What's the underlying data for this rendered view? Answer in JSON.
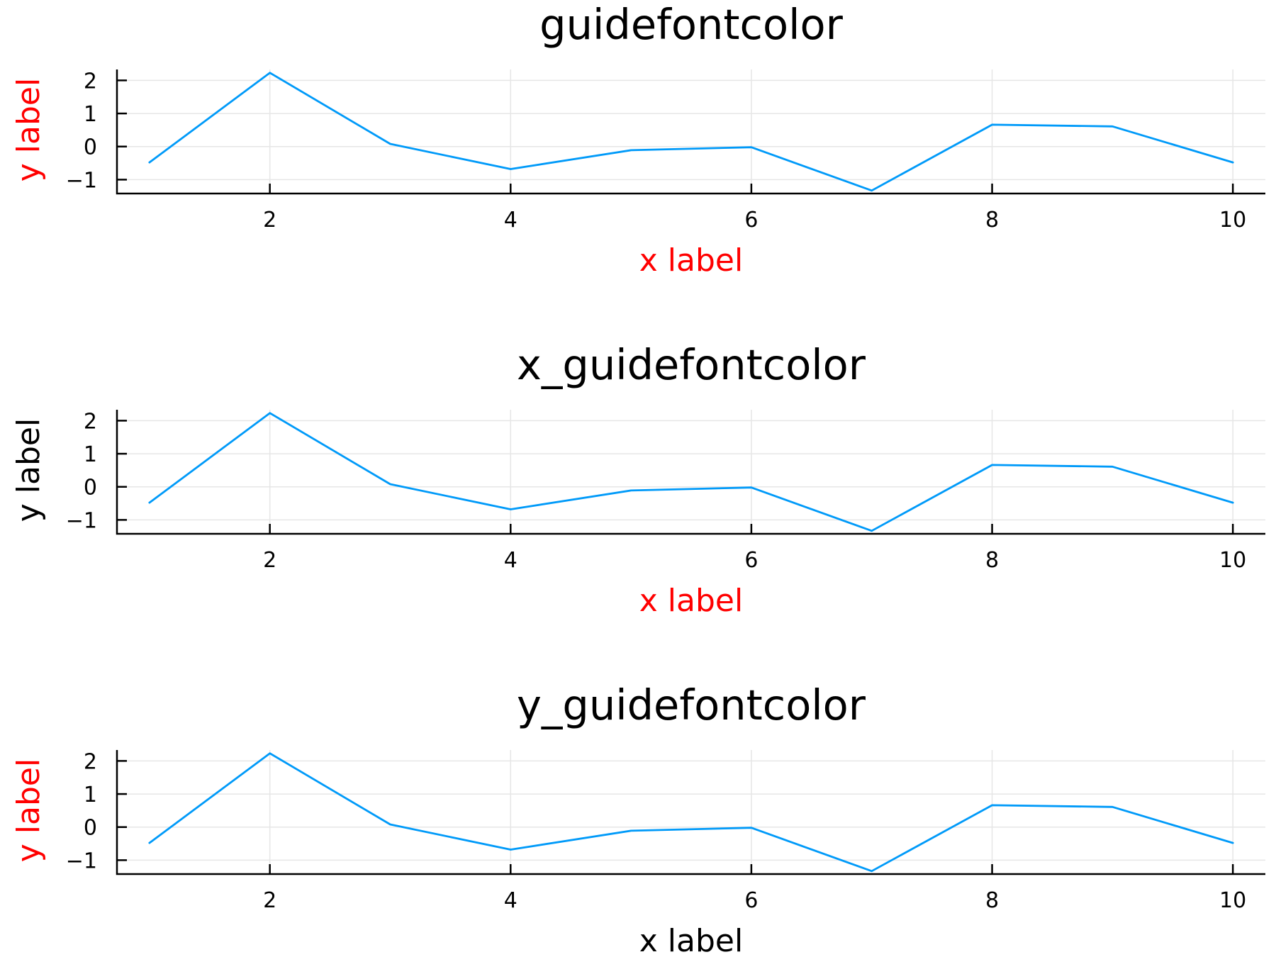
{
  "chart_data": [
    {
      "type": "line",
      "title": "guidefontcolor",
      "xlabel": "x label",
      "ylabel": "y label",
      "xlabel_color": "#ff0000",
      "ylabel_color": "#ff0000",
      "x": [
        1,
        2,
        3,
        4,
        5,
        6,
        7,
        8,
        9,
        10
      ],
      "series": [
        {
          "values": [
            -0.48,
            2.23,
            0.08,
            -0.68,
            -0.11,
            -0.02,
            -1.33,
            0.66,
            0.61,
            -0.48
          ],
          "color": "#009af9"
        }
      ],
      "xlim": [
        0.73,
        10.27
      ],
      "ylim": [
        -1.42,
        2.33
      ],
      "xticks": [
        2,
        4,
        6,
        8,
        10
      ],
      "yticks": [
        -1,
        0,
        1,
        2
      ],
      "xtick_labels": [
        "2",
        "4",
        "6",
        "8",
        "10"
      ],
      "ytick_labels": [
        "−1",
        "0",
        "1",
        "2"
      ],
      "grid": true,
      "legend": "none"
    },
    {
      "type": "line",
      "title": "x_guidefontcolor",
      "xlabel": "x label",
      "ylabel": "y label",
      "xlabel_color": "#ff0000",
      "ylabel_color": "#000000",
      "x": [
        1,
        2,
        3,
        4,
        5,
        6,
        7,
        8,
        9,
        10
      ],
      "series": [
        {
          "values": [
            -0.48,
            2.23,
            0.08,
            -0.68,
            -0.11,
            -0.02,
            -1.33,
            0.66,
            0.61,
            -0.48
          ],
          "color": "#009af9"
        }
      ],
      "xlim": [
        0.73,
        10.27
      ],
      "ylim": [
        -1.42,
        2.33
      ],
      "xticks": [
        2,
        4,
        6,
        8,
        10
      ],
      "yticks": [
        -1,
        0,
        1,
        2
      ],
      "xtick_labels": [
        "2",
        "4",
        "6",
        "8",
        "10"
      ],
      "ytick_labels": [
        "−1",
        "0",
        "1",
        "2"
      ],
      "grid": true,
      "legend": "none"
    },
    {
      "type": "line",
      "title": "y_guidefontcolor",
      "xlabel": "x label",
      "ylabel": "y label",
      "xlabel_color": "#000000",
      "ylabel_color": "#ff0000",
      "x": [
        1,
        2,
        3,
        4,
        5,
        6,
        7,
        8,
        9,
        10
      ],
      "series": [
        {
          "values": [
            -0.48,
            2.23,
            0.08,
            -0.68,
            -0.11,
            -0.02,
            -1.33,
            0.66,
            0.61,
            -0.48
          ],
          "color": "#009af9"
        }
      ],
      "xlim": [
        0.73,
        10.27
      ],
      "ylim": [
        -1.42,
        2.33
      ],
      "xticks": [
        2,
        4,
        6,
        8,
        10
      ],
      "yticks": [
        -1,
        0,
        1,
        2
      ],
      "xtick_labels": [
        "2",
        "4",
        "6",
        "8",
        "10"
      ],
      "ytick_labels": [
        "−1",
        "0",
        "1",
        "2"
      ],
      "grid": true,
      "legend": "none"
    }
  ]
}
